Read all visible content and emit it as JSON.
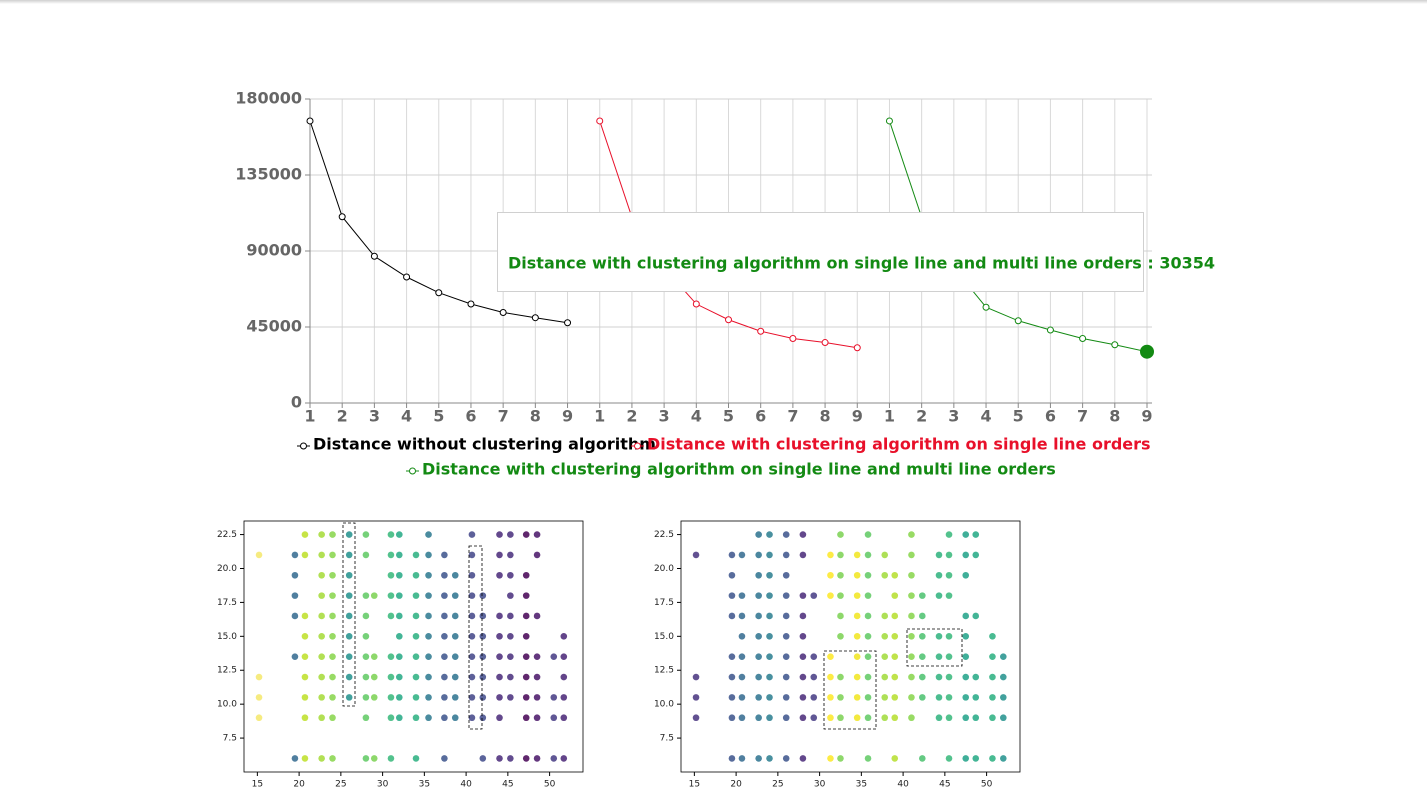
{
  "chart_data": [
    {
      "type": "line",
      "x": [
        1,
        2,
        3,
        4,
        5,
        6,
        7,
        8,
        9
      ],
      "ylim": [
        0,
        180000
      ],
      "yticks": [
        0,
        45000,
        90000,
        135000,
        180000
      ],
      "grid": true,
      "series": [
        {
          "name": "Distance without clustering algorithm",
          "color": "#000000",
          "values": [
            167000,
            110300,
            86900,
            74600,
            65300,
            58600,
            53600,
            50500,
            47500
          ]
        },
        {
          "name": "Distance with clustering algorithm on single line orders",
          "color": "#e8102a",
          "values": [
            167000,
            110000,
            80000,
            58600,
            49300,
            42500,
            38200,
            35800,
            32700
          ]
        },
        {
          "name": "Distance with clustering algorithm on single line and multi line orders",
          "color": "#138a13",
          "values": [
            167000,
            110000,
            80000,
            56700,
            48700,
            43200,
            38200,
            34500,
            30354
          ]
        }
      ],
      "tooltip": "Distance with clustering algorithm on single line and multi line orders : 30354"
    },
    {
      "type": "scatter",
      "xlim": [
        13.4,
        54
      ],
      "ylim": [
        5,
        23.5
      ],
      "xticks": [
        15,
        20,
        25,
        30,
        35,
        40,
        45,
        50
      ],
      "yticks": [
        7.5,
        {
          "value": 10,
          "label": "10.0"
        },
        12.5,
        {
          "value": 15,
          "label": "15.0"
        },
        17.5,
        {
          "value": 20,
          "label": "20.0"
        },
        22.5
      ],
      "columns": [
        {
          "x": 15.2,
          "color": "#f4e86a",
          "y": [
            21,
            12,
            10.5,
            9
          ]
        },
        {
          "x": 19.5,
          "color": "#31688e",
          "y": [
            21,
            19.5,
            18,
            16.5,
            13.5,
            6
          ]
        },
        {
          "x": 20.7,
          "color": "#bddf26",
          "y": [
            22.5,
            21,
            16.5,
            15,
            13.5,
            12,
            10.5,
            9,
            6
          ]
        },
        {
          "x": 22.7,
          "color": "#a5db36",
          "y": [
            22.5,
            21,
            19.5,
            18,
            16.5,
            15,
            13.5,
            12,
            10.5,
            9,
            6
          ]
        },
        {
          "x": 24,
          "color": "#86d549",
          "y": [
            22.5,
            21,
            19.5,
            18,
            16.5,
            15,
            13.5,
            12,
            10.5,
            9,
            6
          ]
        },
        {
          "x": 26,
          "color": "#21918c",
          "y": [
            22.5,
            21,
            19.5,
            18,
            16.5,
            15,
            13.5,
            12,
            10.5
          ]
        },
        {
          "x": 28,
          "color": "#5ec962",
          "y": [
            22.5,
            21,
            18,
            16.5,
            15,
            13.5,
            12,
            10.5,
            9,
            6
          ]
        },
        {
          "x": 29,
          "color": "#7ad151",
          "y": [
            18,
            13.5,
            12,
            10.5,
            6
          ]
        },
        {
          "x": 31,
          "color": "#35b779",
          "y": [
            22.5,
            21,
            19.5,
            18,
            16.5,
            13.5,
            12,
            10.5,
            9,
            6
          ]
        },
        {
          "x": 32,
          "color": "#22a884",
          "y": [
            22.5,
            21,
            19.5,
            18,
            16.5,
            15,
            13.5,
            12,
            10.5,
            9
          ]
        },
        {
          "x": 34,
          "color": "#29af7f",
          "y": [
            21,
            19.5,
            18,
            16.5,
            15,
            13.5,
            12,
            10.5,
            9,
            6
          ]
        },
        {
          "x": 35.5,
          "color": "#2a788e",
          "y": [
            22.5,
            21,
            19.5,
            18,
            16.5,
            15,
            13.5,
            12,
            10.5,
            9
          ]
        },
        {
          "x": 37.4,
          "color": "#3b528b",
          "y": [
            21,
            19.5,
            18,
            16.5,
            15,
            13.5,
            12,
            10.5,
            9,
            6
          ]
        },
        {
          "x": 38.7,
          "color": "#2c728e",
          "y": [
            19.5,
            18,
            16.5,
            15,
            13.5,
            12,
            10.5,
            9
          ]
        },
        {
          "x": 40.7,
          "color": "#414487",
          "y": [
            22.5,
            21,
            19.5,
            18,
            16.5,
            15,
            13.5,
            12,
            10.5,
            9
          ]
        },
        {
          "x": 42,
          "color": "#3e4989",
          "y": [
            18,
            16.5,
            15,
            13.5,
            12,
            10.5,
            9,
            6
          ]
        },
        {
          "x": 44,
          "color": "#482878",
          "y": [
            22.5,
            21,
            19.5,
            16.5,
            15,
            13.5,
            12,
            10.5,
            9,
            6
          ]
        },
        {
          "x": 45.3,
          "color": "#472d7b",
          "y": [
            22.5,
            21,
            19.5,
            18,
            16.5,
            15,
            13.5,
            12,
            10.5,
            6
          ]
        },
        {
          "x": 47.2,
          "color": "#440154",
          "y": [
            22.5,
            19.5,
            18,
            16.5,
            15,
            13.5,
            12,
            10.5,
            9,
            6
          ]
        },
        {
          "x": 48.5,
          "color": "#481467",
          "y": [
            22.5,
            21,
            16.5,
            13.5,
            12,
            10.5,
            9,
            6
          ]
        },
        {
          "x": 50.5,
          "color": "#443983",
          "y": [
            13.5,
            10.5,
            9,
            6
          ]
        },
        {
          "x": 51.7,
          "color": "#482475",
          "y": [
            15,
            13.5,
            12,
            10.5,
            9,
            6
          ]
        }
      ]
    },
    {
      "type": "scatter",
      "xlim": [
        13.4,
        54
      ],
      "ylim": [
        5,
        23.5
      ],
      "xticks": [
        15,
        20,
        25,
        30,
        35,
        40,
        45,
        50
      ],
      "yticks": [
        7.5,
        {
          "value": 10,
          "label": "10.0"
        },
        12.5,
        {
          "value": 15,
          "label": "15.0"
        },
        17.5,
        {
          "value": 20,
          "label": "20.0"
        },
        22.5
      ],
      "columns": [
        {
          "x": 15.2,
          "color": "#46337e",
          "y": [
            21,
            12,
            10.5,
            9
          ]
        },
        {
          "x": 19.5,
          "color": "#3b528b",
          "y": [
            21,
            19.5,
            18,
            16.5,
            13.5,
            12,
            10.5,
            9,
            6
          ]
        },
        {
          "x": 20.7,
          "color": "#31688e",
          "y": [
            21,
            18,
            16.5,
            15,
            13.5,
            12,
            10.5,
            9,
            6
          ]
        },
        {
          "x": 22.7,
          "color": "#2c728e",
          "y": [
            22.5,
            21,
            19.5,
            18,
            16.5,
            15,
            13.5,
            12,
            10.5,
            9,
            6
          ]
        },
        {
          "x": 24,
          "color": "#287c8e",
          "y": [
            22.5,
            21,
            19.5,
            18,
            16.5,
            15,
            13.5,
            12,
            10.5,
            9,
            6
          ]
        },
        {
          "x": 26,
          "color": "#3b528b",
          "y": [
            22.5,
            21,
            19.5,
            18,
            16.5,
            15,
            13.5,
            12,
            10.5,
            9,
            6
          ]
        },
        {
          "x": 28,
          "color": "#482878",
          "y": [
            22.5,
            21,
            18,
            16.5,
            15,
            13.5,
            12,
            10.5,
            9,
            6
          ]
        },
        {
          "x": 29.3,
          "color": "#443983",
          "y": [
            18,
            13.5,
            12,
            10.5,
            9
          ]
        },
        {
          "x": 31.3,
          "color": "#fde725",
          "y": [
            21,
            19.5,
            18,
            13.5,
            12,
            10.5,
            9,
            6
          ]
        },
        {
          "x": 32.5,
          "color": "#7ad151",
          "y": [
            22.5,
            21,
            19.5,
            18,
            16.5,
            15,
            12,
            10.5,
            9,
            6
          ]
        },
        {
          "x": 34.5,
          "color": "#f1e51d",
          "y": [
            21,
            19.5,
            18,
            16.5,
            15,
            13.5,
            12,
            10.5,
            9
          ]
        },
        {
          "x": 35.8,
          "color": "#5ec962",
          "y": [
            22.5,
            21,
            19.5,
            18,
            16.5,
            15,
            13.5,
            12,
            10.5,
            9,
            6
          ]
        },
        {
          "x": 37.8,
          "color": "#a0da39",
          "y": [
            21,
            19.5,
            16.5,
            15,
            13.5,
            12,
            10.5,
            9
          ]
        },
        {
          "x": 39,
          "color": "#b5de2b",
          "y": [
            19.5,
            18,
            16.5,
            15,
            13.5,
            12,
            10.5,
            9,
            6
          ]
        },
        {
          "x": 41,
          "color": "#86d549",
          "y": [
            22.5,
            21,
            19.5,
            18,
            16.5,
            15,
            13.5,
            12,
            10.5,
            9
          ]
        },
        {
          "x": 42.3,
          "color": "#4ac16d",
          "y": [
            18,
            16.5,
            15,
            13.5,
            12,
            10.5,
            6
          ]
        },
        {
          "x": 44.3,
          "color": "#2db27d",
          "y": [
            21,
            19.5,
            18,
            15,
            13.5,
            12,
            10.5,
            9
          ]
        },
        {
          "x": 45.5,
          "color": "#35b779",
          "y": [
            22.5,
            21,
            19.5,
            18,
            15,
            13.5,
            12,
            10.5,
            9,
            6
          ]
        },
        {
          "x": 47.5,
          "color": "#1fa187",
          "y": [
            22.5,
            21,
            19.5,
            16.5,
            15,
            13.5,
            12,
            10.5,
            9,
            6
          ]
        },
        {
          "x": 48.7,
          "color": "#22a884",
          "y": [
            22.5,
            21,
            16.5,
            12,
            10.5,
            9,
            6
          ]
        },
        {
          "x": 50.7,
          "color": "#29af7f",
          "y": [
            15,
            13.5,
            12,
            10.5,
            9,
            6
          ]
        },
        {
          "x": 52,
          "color": "#21918c",
          "y": [
            13.5,
            12,
            10.5,
            9,
            6
          ]
        }
      ]
    }
  ]
}
